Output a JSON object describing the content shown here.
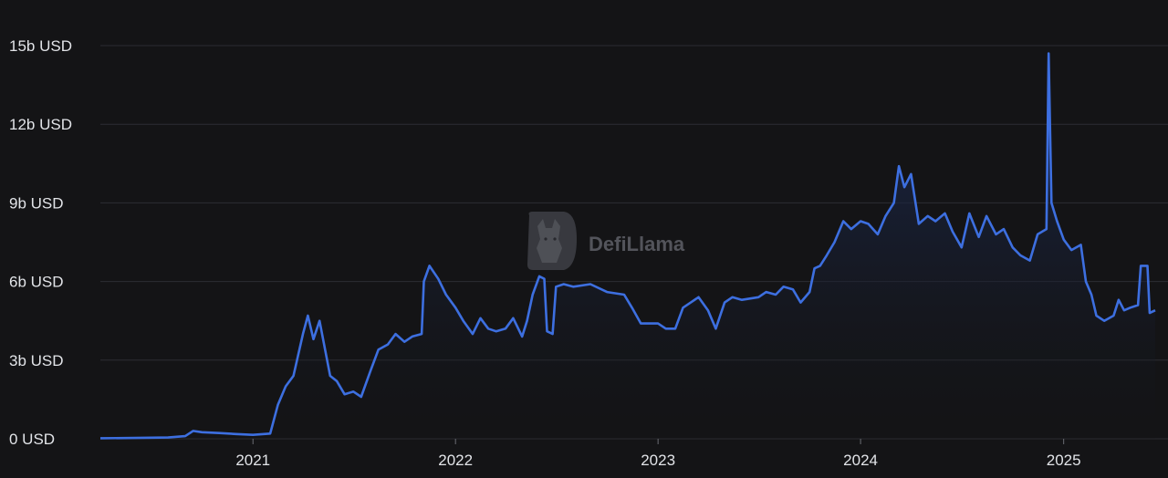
{
  "watermark": {
    "text": "DefiLlama",
    "icon": "llama-logo-icon"
  },
  "colors": {
    "line": "#3d6fe0",
    "fill_top": "#1c2d5a",
    "fill_bottom": "#141416",
    "grid": "#2c2d33",
    "text": "#e2e4e8"
  },
  "chart_data": {
    "type": "area",
    "title": "",
    "xlabel": "",
    "ylabel": "",
    "grid": "horizontal",
    "y_ticks": [
      0,
      3,
      6,
      9,
      12,
      15
    ],
    "y_tick_labels": [
      "0 USD",
      "3b USD",
      "6b USD",
      "9b USD",
      "12b USD",
      "15b USD"
    ],
    "x_ticks": [
      "2021",
      "2022",
      "2023",
      "2024",
      "2025"
    ],
    "ylim": [
      0,
      15
    ],
    "xlim": [
      "2020-04",
      "2025-06"
    ],
    "series": [
      {
        "unit": "billion USD",
        "points": [
          [
            "2020-04",
            0.02
          ],
          [
            "2020-06",
            0.03
          ],
          [
            "2020-08",
            0.05
          ],
          [
            "2020-09",
            0.1
          ],
          [
            "2020-09-15",
            0.3
          ],
          [
            "2020-10",
            0.25
          ],
          [
            "2020-11",
            0.22
          ],
          [
            "2020-12",
            0.18
          ],
          [
            "2021-01",
            0.15
          ],
          [
            "2021-02",
            0.2
          ],
          [
            "2021-02-15",
            1.3
          ],
          [
            "2021-03",
            2.0
          ],
          [
            "2021-03-15",
            2.4
          ],
          [
            "2021-04",
            4.0
          ],
          [
            "2021-04-10",
            4.7
          ],
          [
            "2021-04-20",
            3.8
          ],
          [
            "2021-05",
            4.5
          ],
          [
            "2021-05-10",
            3.5
          ],
          [
            "2021-05-20",
            2.4
          ],
          [
            "2021-06",
            2.2
          ],
          [
            "2021-06-15",
            1.7
          ],
          [
            "2021-07",
            1.8
          ],
          [
            "2021-07-15",
            1.6
          ],
          [
            "2021-08",
            2.6
          ],
          [
            "2021-08-15",
            3.4
          ],
          [
            "2021-09",
            3.6
          ],
          [
            "2021-09-15",
            4.0
          ],
          [
            "2021-10",
            3.7
          ],
          [
            "2021-10-15",
            3.9
          ],
          [
            "2021-11",
            4.0
          ],
          [
            "2021-11-05",
            6.0
          ],
          [
            "2021-11-15",
            6.6
          ],
          [
            "2021-12",
            6.1
          ],
          [
            "2021-12-15",
            5.5
          ],
          [
            "2022-01",
            5.0
          ],
          [
            "2022-01-15",
            4.5
          ],
          [
            "2022-02",
            4.0
          ],
          [
            "2022-02-15",
            4.6
          ],
          [
            "2022-03",
            4.2
          ],
          [
            "2022-03-15",
            4.1
          ],
          [
            "2022-04",
            4.2
          ],
          [
            "2022-04-15",
            4.6
          ],
          [
            "2022-05",
            3.9
          ],
          [
            "2022-05-10",
            4.5
          ],
          [
            "2022-05-20",
            5.5
          ],
          [
            "2022-06",
            6.2
          ],
          [
            "2022-06-10",
            6.1
          ],
          [
            "2022-06-15",
            4.1
          ],
          [
            "2022-06-25",
            4.0
          ],
          [
            "2022-07",
            5.8
          ],
          [
            "2022-07-15",
            5.9
          ],
          [
            "2022-08",
            5.8
          ],
          [
            "2022-09",
            5.9
          ],
          [
            "2022-10",
            5.6
          ],
          [
            "2022-11",
            5.5
          ],
          [
            "2022-11-15",
            5.0
          ],
          [
            "2022-12",
            4.4
          ],
          [
            "2023-01",
            4.4
          ],
          [
            "2023-01-15",
            4.2
          ],
          [
            "2023-02",
            4.2
          ],
          [
            "2023-02-15",
            5.0
          ],
          [
            "2023-03",
            5.2
          ],
          [
            "2023-03-15",
            5.4
          ],
          [
            "2023-04",
            4.9
          ],
          [
            "2023-04-15",
            4.2
          ],
          [
            "2023-05",
            5.2
          ],
          [
            "2023-05-15",
            5.4
          ],
          [
            "2023-06",
            5.3
          ],
          [
            "2023-07",
            5.4
          ],
          [
            "2023-07-15",
            5.6
          ],
          [
            "2023-08",
            5.5
          ],
          [
            "2023-08-15",
            5.8
          ],
          [
            "2023-09",
            5.7
          ],
          [
            "2023-09-15",
            5.2
          ],
          [
            "2023-10",
            5.6
          ],
          [
            "2023-10-10",
            6.5
          ],
          [
            "2023-10-20",
            6.6
          ],
          [
            "2023-11",
            7.0
          ],
          [
            "2023-11-15",
            7.5
          ],
          [
            "2023-12",
            8.3
          ],
          [
            "2023-12-15",
            8.0
          ],
          [
            "2024-01",
            8.3
          ],
          [
            "2024-01-15",
            8.2
          ],
          [
            "2024-02",
            7.8
          ],
          [
            "2024-02-15",
            8.5
          ],
          [
            "2024-03",
            9.0
          ],
          [
            "2024-03-10",
            10.4
          ],
          [
            "2024-03-20",
            9.6
          ],
          [
            "2024-04",
            10.1
          ],
          [
            "2024-04-15",
            8.2
          ],
          [
            "2024-05",
            8.5
          ],
          [
            "2024-05-15",
            8.3
          ],
          [
            "2024-06",
            8.6
          ],
          [
            "2024-06-15",
            7.9
          ],
          [
            "2024-07",
            7.3
          ],
          [
            "2024-07-15",
            8.6
          ],
          [
            "2024-08",
            7.7
          ],
          [
            "2024-08-15",
            8.5
          ],
          [
            "2024-09",
            7.8
          ],
          [
            "2024-09-15",
            8.0
          ],
          [
            "2024-10",
            7.3
          ],
          [
            "2024-10-15",
            7.0
          ],
          [
            "2024-11",
            6.8
          ],
          [
            "2024-11-15",
            7.8
          ],
          [
            "2024-12",
            8.0
          ],
          [
            "2024-12-05",
            14.7
          ],
          [
            "2024-12-10",
            9.0
          ],
          [
            "2024-12-20",
            8.3
          ],
          [
            "2025-01",
            7.6
          ],
          [
            "2025-01-15",
            7.2
          ],
          [
            "2025-02",
            7.4
          ],
          [
            "2025-02-10",
            6.0
          ],
          [
            "2025-02-20",
            5.5
          ],
          [
            "2025-03",
            4.7
          ],
          [
            "2025-03-15",
            4.5
          ],
          [
            "2025-04",
            4.7
          ],
          [
            "2025-04-10",
            5.3
          ],
          [
            "2025-04-20",
            4.9
          ],
          [
            "2025-05",
            5.0
          ],
          [
            "2025-05-15",
            5.1
          ],
          [
            "2025-05-20",
            6.6
          ],
          [
            "2025-06",
            6.6
          ],
          [
            "2025-06-05",
            4.8
          ],
          [
            "2025-06-15",
            4.9
          ]
        ]
      }
    ]
  }
}
